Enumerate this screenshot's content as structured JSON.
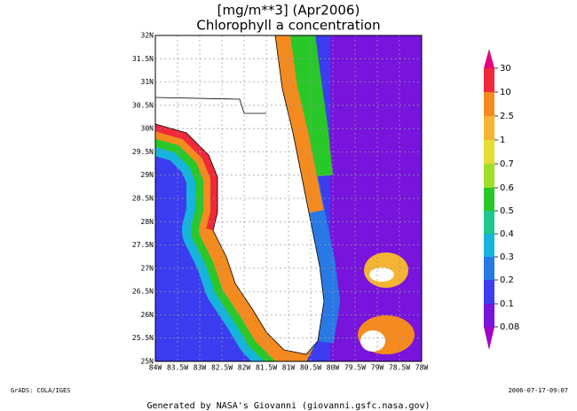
{
  "title": {
    "units": "[mg/m**3] (Apr2006)",
    "name": "Chlorophyll a concentration"
  },
  "map": {
    "lat_ticks": [
      "32N",
      "31.5N",
      "31N",
      "30.5N",
      "30N",
      "29.5N",
      "29N",
      "28.5N",
      "28N",
      "27.5N",
      "27N",
      "26.5N",
      "26N",
      "25.5N",
      "25N"
    ],
    "lon_ticks": [
      "84W",
      "83.5W",
      "83W",
      "82.5W",
      "82W",
      "81.5W",
      "81W",
      "80.5W",
      "80W",
      "79.5W",
      "79W",
      "78.5W",
      "78W"
    ]
  },
  "colorbar": {
    "labels": [
      "30",
      "10",
      "2.5",
      "1",
      "0.7",
      "0.6",
      "0.5",
      "0.4",
      "0.3",
      "0.2",
      "0.1",
      "0.08"
    ]
  },
  "footer": {
    "left": "GrADS: COLA/IGES",
    "right": "2006-07-17-09:07",
    "credit": "Generated by NASA's Giovanni (giovanni.gsfc.nasa.gov)"
  }
}
